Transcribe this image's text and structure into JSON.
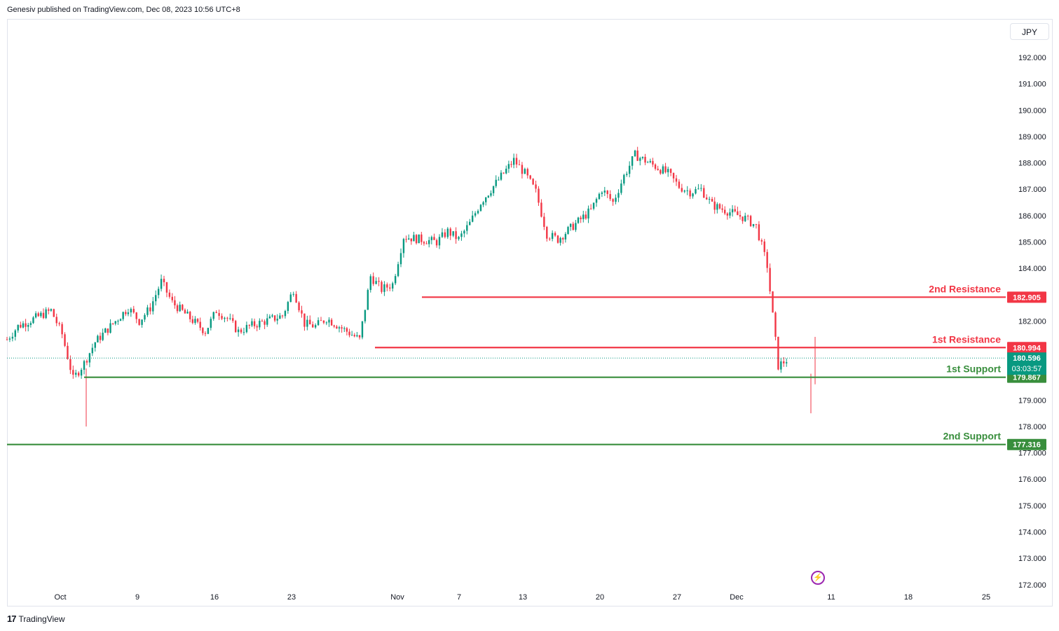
{
  "header": {
    "published": "Genesiv published on TradingView.com, Dec 08, 2023 10:56 UTC+8"
  },
  "currency": "JPY",
  "footer": {
    "brand": "TradingView"
  },
  "icons": {
    "event": "lightning-icon",
    "logo": "tradingview-logo-icon"
  },
  "chart_data": {
    "type": "candlestick",
    "title": "",
    "ylim": [
      172.0,
      193.0
    ],
    "y_ticks": [
      "192.000",
      "191.000",
      "190.000",
      "189.000",
      "188.000",
      "187.000",
      "186.000",
      "185.000",
      "184.000",
      "183.000",
      "182.000",
      "181.000",
      "180.000",
      "179.000",
      "178.000",
      "177.000",
      "176.000",
      "175.000",
      "174.000",
      "173.000",
      "172.000"
    ],
    "x_ticks": [
      "Oct",
      "9",
      "16",
      "23",
      "Nov",
      "7",
      "13",
      "20",
      "27",
      "Dec",
      "11",
      "18",
      "25"
    ],
    "grid": false,
    "colors": {
      "up": "#089981",
      "down": "#f23645",
      "resistance": "#f23645",
      "support": "#388e3c"
    },
    "levels": [
      {
        "label": "2nd Resistance",
        "value": 182.905,
        "price_label": "182.905",
        "kind": "resistance"
      },
      {
        "label": "1st Resistance",
        "value": 180.994,
        "price_label": "180.994",
        "kind": "resistance"
      },
      {
        "label": "1st Support",
        "value": 179.867,
        "price_label": "179.867",
        "kind": "support"
      },
      {
        "label": "2nd Support",
        "value": 177.316,
        "price_label": "177.316",
        "kind": "support"
      }
    ],
    "last_price": {
      "value": 180.596,
      "price_label": "180.596",
      "countdown": "03:03:57"
    },
    "series_close_path": [
      [
        "2023-09-28",
        181.3
      ],
      [
        "2023-09-29",
        181.8
      ],
      [
        "2023-10-02",
        182.4
      ],
      [
        "2023-10-03",
        181.5
      ],
      [
        "2023-10-04",
        179.8
      ],
      [
        "2023-10-05",
        180.4
      ],
      [
        "2023-10-06",
        181.2
      ],
      [
        "2023-10-09",
        182.5
      ],
      [
        "2023-10-10",
        182.0
      ],
      [
        "2023-10-11",
        182.5
      ],
      [
        "2023-10-12",
        183.5
      ],
      [
        "2023-10-13",
        182.7
      ],
      [
        "2023-10-16",
        181.6
      ],
      [
        "2023-10-17",
        182.4
      ],
      [
        "2023-10-18",
        182.1
      ],
      [
        "2023-10-19",
        181.6
      ],
      [
        "2023-10-20",
        181.8
      ],
      [
        "2023-10-23",
        182.2
      ],
      [
        "2023-10-24",
        183.2
      ],
      [
        "2023-10-25",
        181.9
      ],
      [
        "2023-10-26",
        181.8
      ],
      [
        "2023-10-27",
        182.1
      ],
      [
        "2023-10-30",
        181.3
      ],
      [
        "2023-10-31",
        183.7
      ],
      [
        "2023-11-01",
        183.2
      ],
      [
        "2023-11-02",
        183.4
      ],
      [
        "2023-11-03",
        185.2
      ],
      [
        "2023-11-06",
        185.0
      ],
      [
        "2023-11-07",
        185.4
      ],
      [
        "2023-11-08",
        185.1
      ],
      [
        "2023-11-09",
        185.7
      ],
      [
        "2023-11-10",
        186.5
      ],
      [
        "2023-11-13",
        188.1
      ],
      [
        "2023-11-14",
        187.6
      ],
      [
        "2023-11-15",
        186.9
      ],
      [
        "2023-11-16",
        185.3
      ],
      [
        "2023-11-17",
        185.1
      ],
      [
        "2023-11-20",
        186.2
      ],
      [
        "2023-11-21",
        187.0
      ],
      [
        "2023-11-22",
        186.5
      ],
      [
        "2023-11-23",
        187.5
      ],
      [
        "2023-11-24",
        188.3
      ],
      [
        "2023-11-27",
        187.6
      ],
      [
        "2023-11-28",
        187.1
      ],
      [
        "2023-11-29",
        186.9
      ],
      [
        "2023-11-30",
        187.0
      ],
      [
        "2023-12-01",
        186.4
      ],
      [
        "2023-12-04",
        185.9
      ],
      [
        "2023-12-05",
        185.6
      ],
      [
        "2023-12-06",
        184.1
      ],
      [
        "2023-12-07",
        180.3
      ],
      [
        "2023-12-08",
        180.596
      ]
    ]
  }
}
